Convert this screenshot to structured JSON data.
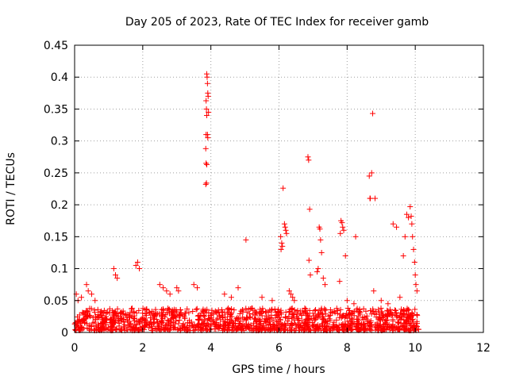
{
  "chart_data": {
    "type": "scatter",
    "title": "Day 205 of 2023, Rate Of TEC Index for receiver gamb",
    "xlabel": "GPS time / hours",
    "ylabel": "ROTI / TECUs",
    "xlim": [
      0,
      12
    ],
    "ylim": [
      0,
      0.45
    ],
    "xticks": [
      0,
      2,
      4,
      6,
      8,
      10,
      12
    ],
    "xtick_labels": [
      "0",
      "2",
      "4",
      "6",
      "8",
      "10",
      "12"
    ],
    "yticks": [
      0,
      0.05,
      0.1,
      0.15,
      0.2,
      0.25,
      0.3,
      0.35,
      0.4,
      0.45
    ],
    "ytick_labels": [
      "0",
      "0.05",
      "0.1",
      "0.15",
      "0.2",
      "0.25",
      "0.3",
      "0.35",
      "0.4",
      "0.45"
    ],
    "grid": true,
    "marker": "+",
    "color": "#ff0000",
    "series": [
      {
        "name": "ROTI",
        "x": [
          3.88,
          3.89,
          3.9,
          3.91,
          3.92,
          3.93,
          3.86,
          3.87,
          3.88,
          3.9,
          3.91,
          3.85,
          3.86,
          3.88,
          3.87,
          3.86,
          3.85,
          5.03,
          6.12,
          6.16,
          6.18,
          6.2,
          6.22,
          6.05,
          6.08,
          6.1,
          6.06,
          6.3,
          6.35,
          6.4,
          6.45,
          6.85,
          6.87,
          6.9,
          6.88,
          6.92,
          7.18,
          7.2,
          7.22,
          7.25,
          7.15,
          7.12,
          7.3,
          7.35,
          7.82,
          7.85,
          7.87,
          7.9,
          7.8,
          7.95,
          7.78,
          8.25,
          8.65,
          8.67,
          8.68,
          8.72,
          8.75,
          8.82,
          8.78,
          9.35,
          9.45,
          9.85,
          9.88,
          9.9,
          9.92,
          9.95,
          9.98,
          10.0,
          9.75,
          9.8,
          9.7,
          9.65,
          10.02,
          10.05,
          9.55,
          0.05,
          0.1,
          0.2,
          0.35,
          0.4,
          0.5,
          0.6,
          1.15,
          1.2,
          1.25,
          1.8,
          1.85,
          1.9,
          2.5,
          2.6,
          2.7,
          2.8,
          3.0,
          3.05,
          3.5,
          3.6,
          4.4,
          4.6,
          4.8,
          5.5,
          5.8,
          8.0,
          8.2,
          9.0,
          9.2
        ],
        "y": [
          0.405,
          0.4,
          0.39,
          0.375,
          0.37,
          0.345,
          0.363,
          0.35,
          0.34,
          0.31,
          0.305,
          0.288,
          0.31,
          0.263,
          0.234,
          0.265,
          0.232,
          0.145,
          0.226,
          0.17,
          0.165,
          0.16,
          0.155,
          0.15,
          0.14,
          0.135,
          0.13,
          0.065,
          0.06,
          0.055,
          0.05,
          0.275,
          0.27,
          0.193,
          0.113,
          0.09,
          0.165,
          0.162,
          0.145,
          0.125,
          0.1,
          0.095,
          0.085,
          0.075,
          0.175,
          0.172,
          0.165,
          0.16,
          0.155,
          0.12,
          0.08,
          0.15,
          0.245,
          0.21,
          0.21,
          0.25,
          0.343,
          0.21,
          0.065,
          0.17,
          0.165,
          0.197,
          0.182,
          0.17,
          0.15,
          0.13,
          0.11,
          0.09,
          0.185,
          0.18,
          0.15,
          0.12,
          0.075,
          0.065,
          0.055,
          0.06,
          0.05,
          0.055,
          0.075,
          0.065,
          0.06,
          0.05,
          0.1,
          0.09,
          0.085,
          0.105,
          0.11,
          0.1,
          0.075,
          0.07,
          0.065,
          0.06,
          0.07,
          0.065,
          0.075,
          0.07,
          0.06,
          0.055,
          0.07,
          0.055,
          0.05,
          0.05,
          0.045,
          0.05,
          0.045
        ]
      }
    ],
    "background_band": {
      "x_start": 0.0,
      "x_end": 10.1,
      "y_min": 0.0,
      "y_max": 0.035,
      "density": "dense"
    }
  }
}
